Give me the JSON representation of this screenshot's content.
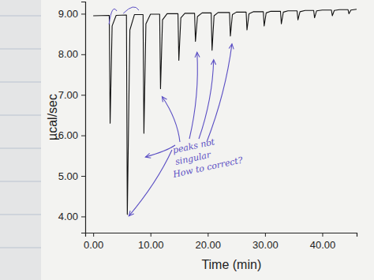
{
  "chart_data": {
    "type": "line",
    "x_label": "Time (min)",
    "y_label": "µcal/sec",
    "x": [
      0.0,
      2.8,
      2.95,
      3.3,
      4.0,
      5.8,
      5.95,
      6.4,
      7.2,
      8.7,
      8.85,
      9.2,
      10.0,
      11.6,
      11.75,
      12.1,
      12.9,
      14.8,
      14.95,
      15.3,
      16.0,
      17.7,
      17.85,
      18.2,
      19.0,
      20.6,
      20.75,
      21.1,
      21.8,
      23.8,
      23.95,
      24.3,
      25.0,
      26.7,
      26.85,
      27.2,
      28.0,
      29.7,
      29.85,
      30.2,
      31.0,
      32.7,
      32.85,
      33.2,
      34.0,
      35.6,
      35.75,
      36.1,
      37.0,
      38.5,
      38.65,
      39.0,
      40.0,
      41.6,
      41.75,
      42.1,
      43.0,
      44.5,
      44.65,
      45.0,
      46.0
    ],
    "values": [
      8.95,
      8.96,
      6.3,
      8.7,
      8.96,
      8.97,
      4.05,
      8.6,
      8.98,
      8.98,
      6.05,
      8.75,
      8.99,
      8.99,
      7.15,
      8.85,
      9.0,
      9.0,
      7.85,
      8.9,
      9.01,
      9.01,
      8.32,
      8.93,
      9.02,
      9.02,
      8.1,
      8.95,
      9.03,
      9.03,
      8.45,
      8.98,
      9.04,
      9.04,
      8.6,
      9.0,
      9.05,
      9.05,
      8.7,
      9.02,
      9.06,
      9.06,
      8.75,
      9.04,
      9.07,
      9.07,
      8.85,
      9.05,
      9.08,
      9.08,
      8.9,
      9.07,
      9.09,
      9.09,
      8.95,
      9.08,
      9.1,
      9.1,
      9.0,
      9.09,
      9.11
    ],
    "color": "#111111",
    "xlim": [
      -1.4,
      46
    ],
    "ylim": [
      3.6,
      9.3
    ],
    "xticks": [
      {
        "value": 0,
        "label": "0.00"
      },
      {
        "value": 10,
        "label": "10.00"
      },
      {
        "value": 20,
        "label": "20.00"
      },
      {
        "value": 30,
        "label": "30.00"
      },
      {
        "value": 40,
        "label": "40.00"
      }
    ],
    "yticks": [
      {
        "value": 4,
        "label": "4.00"
      },
      {
        "value": 5,
        "label": "5.00"
      },
      {
        "value": 6,
        "label": "6.00"
      },
      {
        "value": 7,
        "label": "7.00"
      },
      {
        "value": 8,
        "label": "8.00"
      },
      {
        "value": 9,
        "label": "9.00"
      }
    ],
    "grid": false,
    "annotations": [
      "peaks not",
      "singular",
      "How to correct?"
    ]
  }
}
